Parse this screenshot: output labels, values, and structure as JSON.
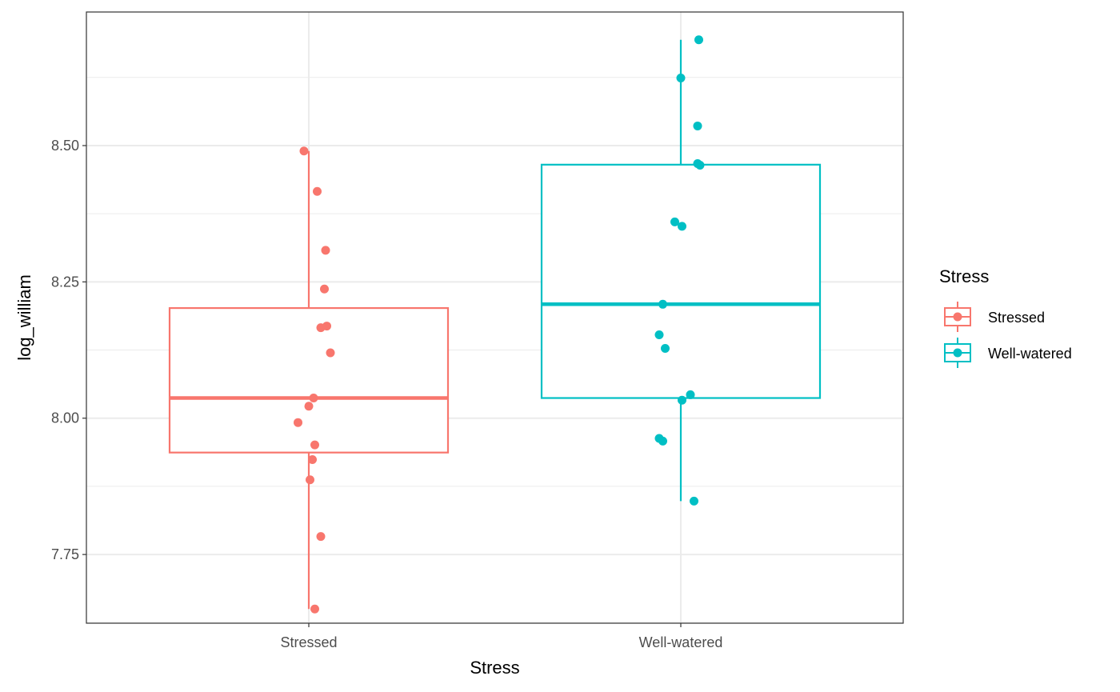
{
  "chart_data": {
    "type": "box",
    "categories": [
      "Stressed",
      "Well-watered"
    ],
    "xlabel": "Stress",
    "ylabel": "log_william",
    "ylim": [
      7.624,
      8.745
    ],
    "y_ticks": [
      7.75,
      8.0,
      8.25,
      8.5
    ],
    "y_tick_labels": [
      "7.75",
      "8.00",
      "8.25",
      "8.50"
    ],
    "grid": true,
    "legend": {
      "title": "Stress",
      "position": "right",
      "entries": [
        "Stressed",
        "Well-watered"
      ]
    },
    "series": [
      {
        "name": "Stressed",
        "color": "#F8766D",
        "box": {
          "lower_whisker": 7.65,
          "q1": 7.937,
          "median": 8.037,
          "q3": 8.202,
          "upper_whisker": 8.49
        },
        "points": [
          {
            "x": -0.02,
            "y": 8.49
          },
          {
            "x": 0.035,
            "y": 8.416
          },
          {
            "x": 0.07,
            "y": 8.308
          },
          {
            "x": 0.065,
            "y": 8.237
          },
          {
            "x": 0.075,
            "y": 8.169
          },
          {
            "x": 0.05,
            "y": 8.166
          },
          {
            "x": 0.09,
            "y": 8.12
          },
          {
            "x": 0.02,
            "y": 8.037
          },
          {
            "x": 0.0,
            "y": 8.022
          },
          {
            "x": -0.045,
            "y": 7.992
          },
          {
            "x": 0.025,
            "y": 7.951
          },
          {
            "x": 0.015,
            "y": 7.924
          },
          {
            "x": 0.005,
            "y": 7.887
          },
          {
            "x": 0.05,
            "y": 7.783
          },
          {
            "x": 0.025,
            "y": 7.65
          }
        ]
      },
      {
        "name": "Well-watered",
        "color": "#00BFC4",
        "box": {
          "lower_whisker": 7.848,
          "q1": 8.037,
          "median": 8.209,
          "q3": 8.465,
          "upper_whisker": 8.694
        },
        "points": [
          {
            "x": 0.075,
            "y": 8.694
          },
          {
            "x": 0.0,
            "y": 8.624
          },
          {
            "x": 0.07,
            "y": 8.536
          },
          {
            "x": 0.07,
            "y": 8.467
          },
          {
            "x": 0.08,
            "y": 8.464
          },
          {
            "x": -0.025,
            "y": 8.36
          },
          {
            "x": 0.005,
            "y": 8.352
          },
          {
            "x": -0.075,
            "y": 8.209
          },
          {
            "x": -0.09,
            "y": 8.153
          },
          {
            "x": -0.065,
            "y": 8.128
          },
          {
            "x": 0.04,
            "y": 8.043
          },
          {
            "x": 0.005,
            "y": 8.033
          },
          {
            "x": -0.09,
            "y": 7.963
          },
          {
            "x": -0.075,
            "y": 7.958
          },
          {
            "x": 0.055,
            "y": 7.848
          }
        ]
      }
    ]
  }
}
